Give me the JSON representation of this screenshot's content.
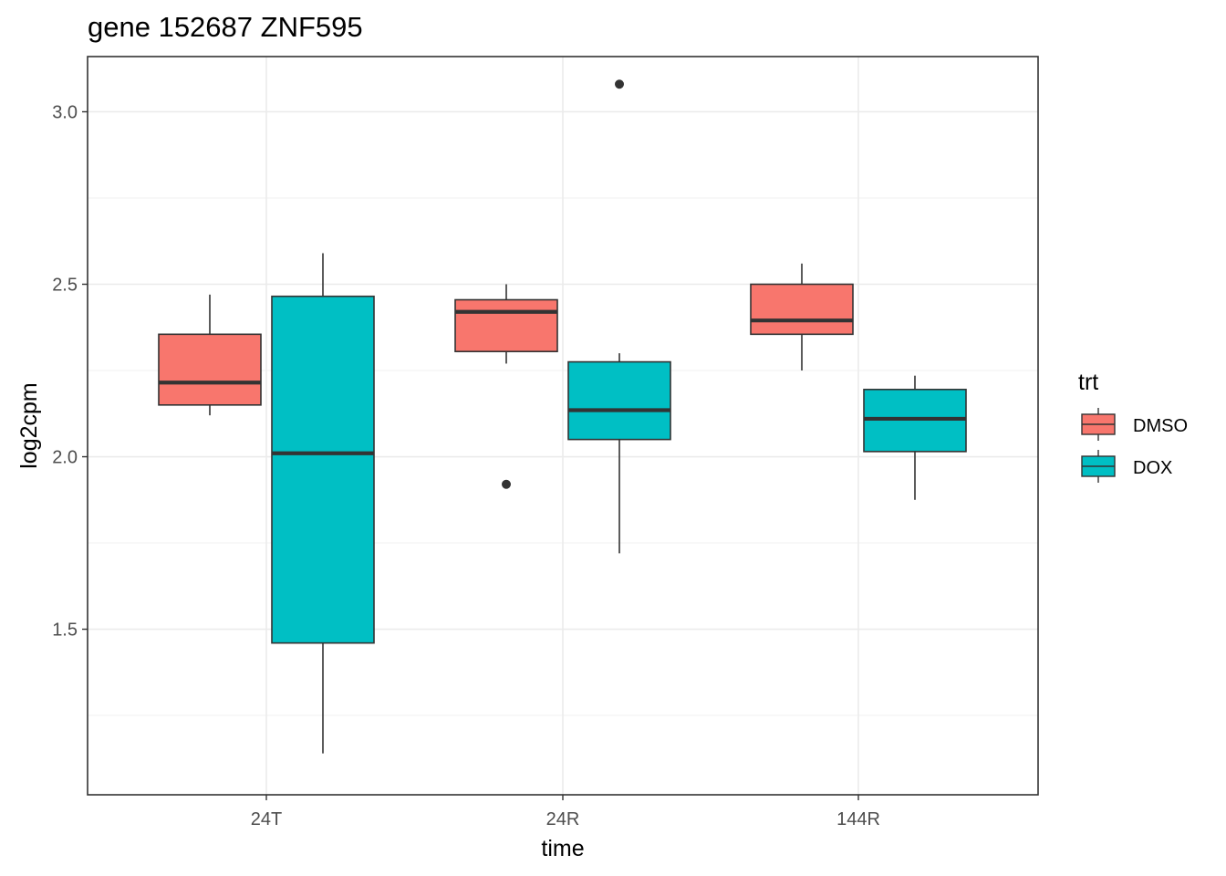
{
  "chart_data": {
    "type": "box",
    "title": "gene 152687 ZNF595",
    "xlabel": "time",
    "ylabel": "log2cpm",
    "categories": [
      "24T",
      "24R",
      "144R"
    ],
    "ylim": [
      1.02,
      3.16
    ],
    "yticks": [
      1.5,
      2.0,
      2.5,
      3.0
    ],
    "ytick_labels": [
      "1.5",
      "2.0",
      "2.5",
      "3.0"
    ],
    "grid": true,
    "legend": {
      "title": "trt",
      "position": "right"
    },
    "series": [
      {
        "name": "DMSO",
        "color": "#F8766D",
        "boxes": [
          {
            "category": "24T",
            "whisker_low": 2.12,
            "q1": 2.15,
            "median": 2.215,
            "q3": 2.355,
            "whisker_high": 2.47,
            "outliers": []
          },
          {
            "category": "24R",
            "whisker_low": 2.27,
            "q1": 2.305,
            "median": 2.42,
            "q3": 2.455,
            "whisker_high": 2.5,
            "outliers": [
              1.92
            ]
          },
          {
            "category": "144R",
            "whisker_low": 2.25,
            "q1": 2.355,
            "median": 2.395,
            "q3": 2.5,
            "whisker_high": 2.56,
            "outliers": []
          }
        ]
      },
      {
        "name": "DOX",
        "color": "#00BFC4",
        "boxes": [
          {
            "category": "24T",
            "whisker_low": 1.14,
            "q1": 1.46,
            "median": 2.01,
            "q3": 2.465,
            "whisker_high": 2.59,
            "outliers": []
          },
          {
            "category": "24R",
            "whisker_low": 1.72,
            "q1": 2.05,
            "median": 2.135,
            "q3": 2.275,
            "whisker_high": 2.3,
            "outliers": [
              3.08
            ]
          },
          {
            "category": "144R",
            "whisker_low": 1.875,
            "q1": 2.015,
            "median": 2.11,
            "q3": 2.195,
            "whisker_high": 2.235,
            "outliers": []
          }
        ]
      }
    ]
  }
}
